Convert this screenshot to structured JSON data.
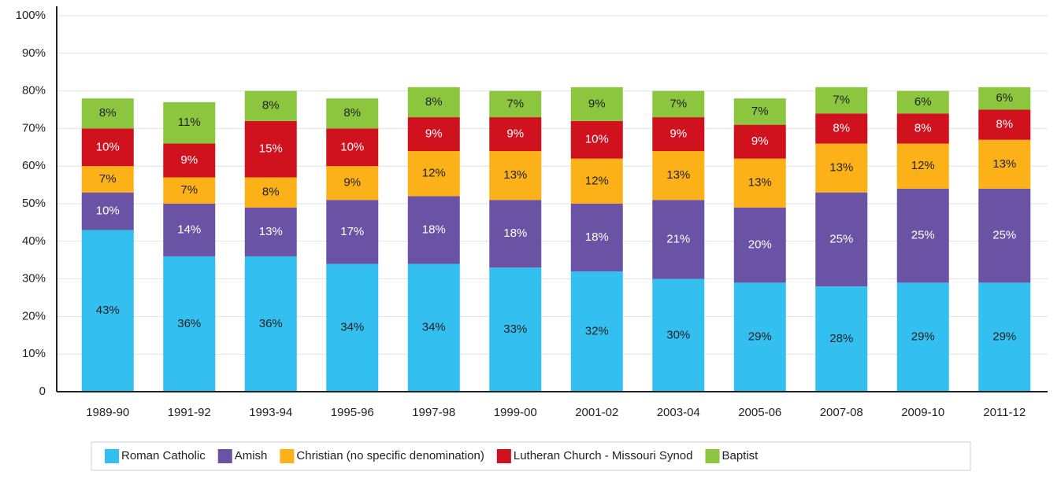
{
  "chart_data": {
    "type": "stacked-bar",
    "categories": [
      "1989-90",
      "1991-92",
      "1993-94",
      "1995-96",
      "1997-98",
      "1999-00",
      "2001-02",
      "2003-04",
      "2005-06",
      "2007-08",
      "2009-10",
      "2011-12"
    ],
    "series": [
      {
        "name": "Roman Catholic",
        "color": "#33bfef",
        "label_color": "#222222",
        "values": [
          43,
          36,
          36,
          34,
          34,
          33,
          32,
          30,
          29,
          28,
          29,
          29
        ],
        "value_labels": [
          "43%",
          "36%",
          "36%",
          "34%",
          "34%",
          "33%",
          "32%",
          "30%",
          "29%",
          "28%",
          "29%",
          "29%"
        ]
      },
      {
        "name": "Amish",
        "color": "#6a52a5",
        "label_color": "#ffffff",
        "values": [
          10,
          14,
          13,
          17,
          18,
          18,
          18,
          21,
          20,
          25,
          25,
          25
        ],
        "value_labels": [
          "10%",
          "14%",
          "13%",
          "17%",
          "18%",
          "18%",
          "18%",
          "21%",
          "20%",
          "25%",
          "25%",
          "25%"
        ]
      },
      {
        "name": "Christian (no specific denomination)",
        "color": "#fbb117",
        "label_color": "#222222",
        "values": [
          7,
          7,
          8,
          9,
          12,
          13,
          12,
          13,
          13,
          13,
          12,
          13
        ],
        "value_labels": [
          "7%",
          "7%",
          "8%",
          "9%",
          "12%",
          "13%",
          "12%",
          "13%",
          "13%",
          "13%",
          "12%",
          "13%"
        ]
      },
      {
        "name": "Lutheran Church - Missouri Synod",
        "color": "#d0121f",
        "label_color": "#ffffff",
        "values": [
          10,
          9,
          15,
          10,
          9,
          9,
          10,
          9,
          9,
          8,
          8,
          8
        ],
        "value_labels": [
          "10%",
          "9%",
          "15%",
          "10%",
          "9%",
          "9%",
          "10%",
          "9%",
          "9%",
          "8%",
          "8%",
          "8%"
        ]
      },
      {
        "name": "Baptist",
        "color": "#8cc63f",
        "label_color": "#222222",
        "values": [
          8,
          11,
          8,
          8,
          8,
          7,
          9,
          7,
          7,
          7,
          6,
          6
        ],
        "value_labels": [
          "8%",
          "11%",
          "8%",
          "8%",
          "8%",
          "7%",
          "9%",
          "7%",
          "7%",
          "7%",
          "6%",
          "6%"
        ]
      }
    ],
    "ylim": [
      0,
      100
    ],
    "yticks": [
      0,
      {
        "value": 10,
        "label": "10%"
      },
      {
        "value": 20,
        "label": "20%"
      },
      {
        "value": 30,
        "label": "30%"
      },
      {
        "value": 40,
        "label": "40%"
      },
      {
        "value": 50,
        "label": "50%"
      },
      {
        "value": 60,
        "label": "60%"
      },
      {
        "value": 70,
        "label": "70%"
      },
      {
        "value": 80,
        "label": "80%"
      },
      {
        "value": 90,
        "label": "90%"
      },
      {
        "value": 100,
        "label": "100%"
      }
    ],
    "grid": true,
    "legend": "bottom"
  }
}
